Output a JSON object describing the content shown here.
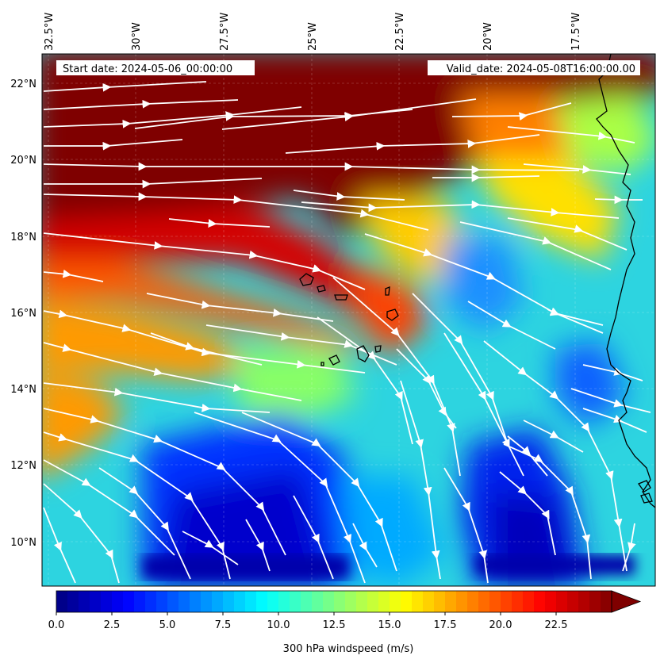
{
  "header": {
    "start_date": "Start date: 2024-05-06_00:00:00",
    "valid_date": "Valid_date: 2024-05-08T16:00:00.00"
  },
  "map": {
    "lon_ticks": [
      "32.5°W",
      "30°W",
      "27.5°W",
      "25°W",
      "22.5°W",
      "20°W",
      "17.5°W"
    ],
    "lat_ticks": [
      "22°N",
      "20°N",
      "18°N",
      "16°N",
      "14°N",
      "12°N",
      "10°N"
    ],
    "variable": "300 hPa windspeed",
    "streamlines_color": "#ffffff",
    "coastline_color": "#000000"
  },
  "colorbar": {
    "label": "300 hPa windspeed (m/s)",
    "tick_labels": [
      "0.0",
      "2.5",
      "5.0",
      "7.5",
      "10.0",
      "12.5",
      "15.0",
      "17.5",
      "20.0",
      "22.5"
    ],
    "min": 0,
    "max": 25,
    "step": 0.5,
    "extend": "max",
    "colormap": "jet"
  }
}
